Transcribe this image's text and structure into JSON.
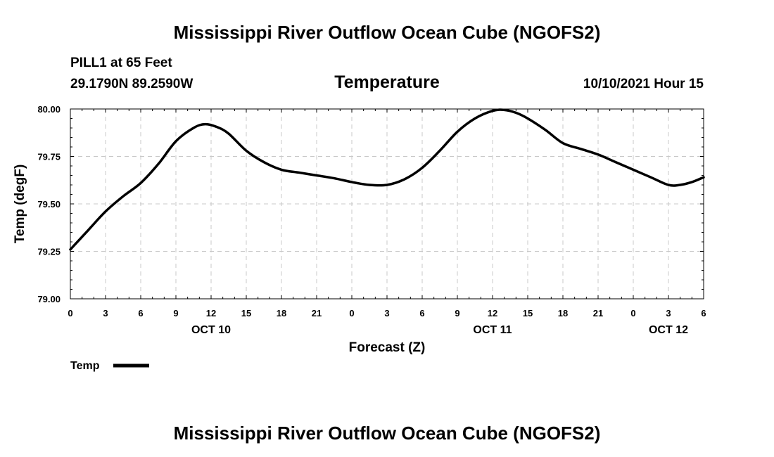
{
  "page": {
    "title_top": "Mississippi River Outflow Ocean Cube (NGOFS2)",
    "title_bottom": "Mississippi River Outflow Ocean Cube (NGOFS2)",
    "station": "PILL1 at 65 Feet",
    "coords": "29.1790N  89.2590W",
    "datetime": "10/10/2021 Hour 15"
  },
  "colors": {
    "line": "#000000",
    "grid": "#c8c8c8",
    "background": "#ffffff"
  },
  "chart_data": {
    "type": "line",
    "title": "Temperature",
    "xlabel": "Forecast (Z)",
    "ylabel": "Temp (degF)",
    "xlim": [
      0,
      54
    ],
    "ylim": [
      79.0,
      80.0
    ],
    "grid": true,
    "x_tick_values": [
      0,
      3,
      6,
      9,
      12,
      15,
      18,
      21,
      24,
      27,
      30,
      33,
      36,
      39,
      42,
      45,
      48,
      51,
      54
    ],
    "x_tick_labels": [
      "0",
      "3",
      "6",
      "9",
      "12",
      "15",
      "18",
      "21",
      "0",
      "3",
      "6",
      "9",
      "12",
      "15",
      "18",
      "21",
      "0",
      "3",
      "6"
    ],
    "y_tick_values": [
      79.0,
      79.25,
      79.5,
      79.75,
      80.0
    ],
    "y_tick_labels": [
      "79.00",
      "79.25",
      "79.50",
      "79.75",
      "80.00"
    ],
    "date_labels": [
      {
        "text": "OCT 10",
        "x": 12
      },
      {
        "text": "OCT 11",
        "x": 36
      },
      {
        "text": "OCT 12",
        "x": 51
      }
    ],
    "legend": {
      "label": "Temp",
      "position": "bottom-left"
    },
    "series": [
      {
        "name": "Temp",
        "x": [
          0,
          1.5,
          3,
          4.5,
          6,
          7.5,
          9,
          10.5,
          11.5,
          12.5,
          13.5,
          15,
          16.5,
          18,
          19.5,
          21,
          22.5,
          24,
          25.5,
          27,
          28.5,
          30,
          31.5,
          33,
          34.5,
          36,
          37,
          38,
          39,
          40.5,
          42,
          43.5,
          45,
          46.5,
          48,
          49.5,
          51,
          52,
          53,
          54
        ],
        "values": [
          79.26,
          79.36,
          79.46,
          79.54,
          79.61,
          79.71,
          79.83,
          79.9,
          79.92,
          79.905,
          79.87,
          79.78,
          79.72,
          79.68,
          79.665,
          79.65,
          79.635,
          79.615,
          79.6,
          79.6,
          79.63,
          79.69,
          79.78,
          79.88,
          79.95,
          79.99,
          79.995,
          79.98,
          79.95,
          79.89,
          79.82,
          79.79,
          79.76,
          79.72,
          79.68,
          79.64,
          79.6,
          79.6,
          79.615,
          79.64
        ]
      }
    ]
  }
}
